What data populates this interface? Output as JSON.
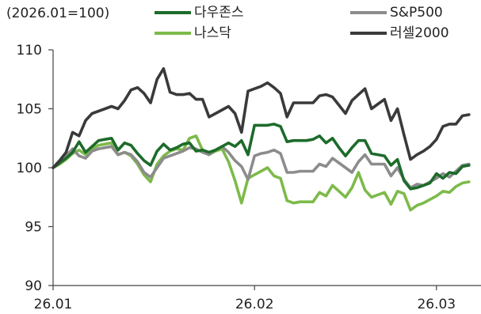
{
  "chart_data": {
    "type": "line",
    "unit_label": "(2026.01=100)",
    "ylim": [
      90,
      110
    ],
    "yticks": [
      "90",
      "95",
      "100",
      "105",
      "110"
    ],
    "xticks": [
      {
        "label": "26.01",
        "x": 0
      },
      {
        "label": "26.02",
        "x": 31
      },
      {
        "label": "26.03",
        "x": 59
      }
    ],
    "grid": false,
    "legend": "top",
    "series": [
      {
        "name": "다우존스",
        "color": "#1d6b2a",
        "x": [
          0,
          1,
          2,
          3,
          4,
          5,
          6,
          7,
          8,
          9,
          10,
          11,
          12,
          13,
          14,
          15,
          16,
          17,
          18,
          19,
          20,
          21,
          22,
          23,
          24,
          25,
          26,
          27,
          28,
          29,
          30,
          31,
          32,
          33,
          34,
          35,
          36,
          37,
          38,
          39,
          40,
          41,
          42,
          43,
          44,
          45,
          46,
          47,
          48,
          49,
          50,
          51,
          52,
          53,
          54,
          55,
          56,
          57,
          58,
          59,
          60,
          61,
          62,
          63,
          64
        ],
        "y": [
          100,
          100.4,
          100.8,
          101.3,
          102.2,
          101.3,
          101.8,
          102.3,
          102.4,
          102.5,
          101.5,
          102.1,
          101.9,
          101.2,
          100.6,
          100.2,
          101.4,
          102.0,
          101.5,
          101.7,
          102.0,
          102.1,
          101.4,
          101.5,
          101.3,
          101.5,
          101.8,
          102.1,
          101.8,
          102.3,
          101.1,
          103.6,
          103.6,
          103.6,
          103.7,
          103.5,
          102.2,
          102.3,
          102.3,
          102.3,
          102.4,
          102.7,
          102.1,
          102.5,
          101.7,
          101.0,
          101.7,
          102.3,
          102.3,
          101.2,
          101.1,
          101.0,
          100.2,
          100.7,
          98.9,
          98.2,
          98.3,
          98.5,
          98.7,
          99.5,
          99.1,
          99.6,
          99.5,
          100.1,
          100.2
        ]
      },
      {
        "name": "S&P500",
        "color": "#8c8c8c",
        "x": [
          0,
          1,
          2,
          3,
          4,
          5,
          6,
          7,
          8,
          9,
          10,
          11,
          12,
          13,
          14,
          15,
          16,
          17,
          18,
          19,
          20,
          21,
          22,
          23,
          24,
          25,
          26,
          27,
          28,
          29,
          30,
          31,
          32,
          33,
          34,
          35,
          36,
          37,
          38,
          39,
          40,
          41,
          42,
          43,
          44,
          45,
          46,
          47,
          48,
          49,
          50,
          51,
          52,
          53,
          54,
          55,
          56,
          57,
          58,
          59,
          60,
          61,
          62,
          63,
          64
        ],
        "y": [
          100,
          100.5,
          101.0,
          101.6,
          101.0,
          100.8,
          101.4,
          101.6,
          101.7,
          101.8,
          101.1,
          101.3,
          101.1,
          100.5,
          99.6,
          99.2,
          100.0,
          100.8,
          101.0,
          101.2,
          101.4,
          101.7,
          101.6,
          101.3,
          101.1,
          101.5,
          101.8,
          101.3,
          100.6,
          100.1,
          99.0,
          101.0,
          101.2,
          101.3,
          101.5,
          101.2,
          99.6,
          99.6,
          99.7,
          99.7,
          99.7,
          100.3,
          100.1,
          100.8,
          100.4,
          100.0,
          99.6,
          100.5,
          101.1,
          100.3,
          100.3,
          100.3,
          99.3,
          100.0,
          99.0,
          98.3,
          98.6,
          98.5,
          98.8,
          99.1,
          99.5,
          99.2,
          99.7,
          100.2,
          100.3
        ]
      },
      {
        "name": "나스닥",
        "color": "#7dba4a",
        "x": [
          0,
          1,
          2,
          3,
          4,
          5,
          6,
          7,
          8,
          9,
          10,
          11,
          12,
          13,
          14,
          15,
          16,
          17,
          18,
          19,
          20,
          21,
          22,
          23,
          24,
          25,
          26,
          27,
          28,
          29,
          30,
          31,
          32,
          33,
          34,
          35,
          36,
          37,
          38,
          39,
          40,
          41,
          42,
          43,
          44,
          45,
          46,
          47,
          48,
          49,
          50,
          51,
          52,
          53,
          54,
          55,
          56,
          57,
          58,
          59,
          60,
          61,
          62,
          63,
          64
        ],
        "y": [
          100,
          100.3,
          100.7,
          101.2,
          101.5,
          101.1,
          101.6,
          101.9,
          102.0,
          102.1,
          101.1,
          101.3,
          101.0,
          100.3,
          99.4,
          98.8,
          100.3,
          101.0,
          101.4,
          101.6,
          101.5,
          102.5,
          102.7,
          101.5,
          101.1,
          101.4,
          101.6,
          100.5,
          98.9,
          97.0,
          99.1,
          99.4,
          99.7,
          100.0,
          99.3,
          99.1,
          97.2,
          97.0,
          97.1,
          97.1,
          97.1,
          97.9,
          97.6,
          98.5,
          98.0,
          97.5,
          98.3,
          99.6,
          98.1,
          97.5,
          97.7,
          97.9,
          96.9,
          98.0,
          97.8,
          96.4,
          96.8,
          97.0,
          97.3,
          97.6,
          98.0,
          97.9,
          98.4,
          98.7,
          98.8
        ]
      },
      {
        "name": "러셀2000",
        "color": "#3a3a3a",
        "x": [
          0,
          1,
          2,
          3,
          4,
          5,
          6,
          7,
          8,
          9,
          10,
          11,
          12,
          13,
          14,
          15,
          16,
          17,
          18,
          19,
          20,
          21,
          22,
          23,
          24,
          25,
          26,
          27,
          28,
          29,
          30,
          31,
          32,
          33,
          34,
          35,
          36,
          37,
          38,
          39,
          40,
          41,
          42,
          43,
          44,
          45,
          46,
          47,
          48,
          49,
          50,
          51,
          52,
          53,
          54,
          55,
          56,
          57,
          58,
          59,
          60,
          61,
          62,
          63,
          64
        ],
        "y": [
          100,
          100.6,
          101.3,
          103.0,
          102.7,
          104.0,
          104.6,
          104.8,
          105.0,
          105.2,
          105.0,
          105.7,
          106.6,
          106.8,
          106.3,
          105.5,
          107.5,
          108.4,
          106.4,
          106.2,
          106.2,
          106.3,
          105.8,
          105.8,
          104.3,
          104.6,
          104.9,
          105.2,
          104.6,
          103.0,
          106.5,
          106.7,
          106.9,
          107.2,
          106.8,
          106.3,
          104.3,
          105.5,
          105.5,
          105.5,
          105.5,
          106.1,
          106.2,
          106.0,
          105.3,
          104.6,
          105.7,
          106.2,
          106.7,
          105.0,
          105.4,
          105.8,
          104.0,
          105.0,
          102.8,
          100.7,
          101.1,
          101.4,
          101.8,
          102.4,
          103.5,
          103.7,
          103.7,
          104.4,
          104.5
        ]
      }
    ]
  }
}
